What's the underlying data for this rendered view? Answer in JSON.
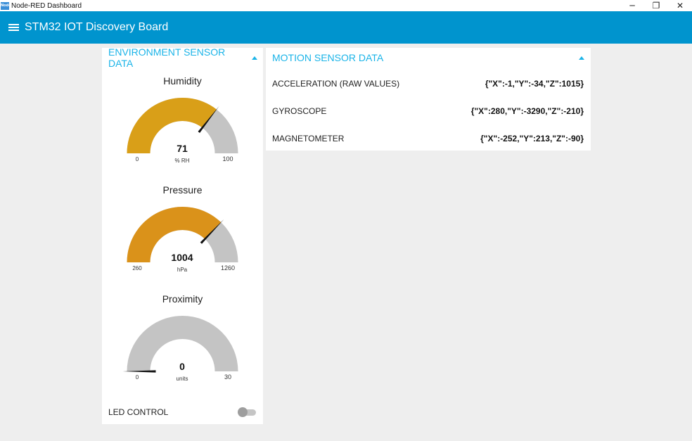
{
  "window": {
    "title": "Node-RED Dashboard",
    "app_icon_text": "Node",
    "controls": {
      "minimize": "─",
      "restore": "❐",
      "close": "✕"
    }
  },
  "toolbar": {
    "title": "STM32 IOT Discovery Board",
    "menu_icon": "hamburger-menu-icon"
  },
  "environment": {
    "header": "ENVIRONMENT SENSOR DATA",
    "gauges": [
      {
        "title": "Humidity",
        "value": "71",
        "units": "% RH",
        "min": "0",
        "max": "100",
        "fraction": 0.71,
        "fill_color": "#d99f18",
        "track_color": "#c4c4c4",
        "needle_color": "#111111"
      },
      {
        "title": "Pressure",
        "value": "1004",
        "units": "hPa",
        "min": "260",
        "max": "1260",
        "fraction": 0.744,
        "fill_color": "#da921a",
        "track_color": "#c4c4c4",
        "needle_color": "#111111"
      },
      {
        "title": "Proximity",
        "value": "0",
        "units": "units",
        "min": "0",
        "max": "30",
        "fraction": 0.0,
        "fill_color": "#d99f18",
        "track_color": "#c4c4c4",
        "needle_color": "#111111"
      }
    ],
    "led": {
      "label": "LED CONTROL",
      "state": "off"
    }
  },
  "motion": {
    "header": "MOTION SENSOR DATA",
    "rows": [
      {
        "label": "ACCELERATION (RAW VALUES)",
        "value": "{\"X\":-1,\"Y\":-34,\"Z\":1015}"
      },
      {
        "label": "GYROSCOPE",
        "value": "{\"X\":280,\"Y\":-3290,\"Z\":-210}"
      },
      {
        "label": "MAGNETOMETER",
        "value": "{\"X\":-252,\"Y\":213,\"Z\":-90}"
      }
    ]
  },
  "colors": {
    "toolbar": "#0094ce",
    "header_text": "#1bb4e8",
    "background": "#eeeeee"
  }
}
